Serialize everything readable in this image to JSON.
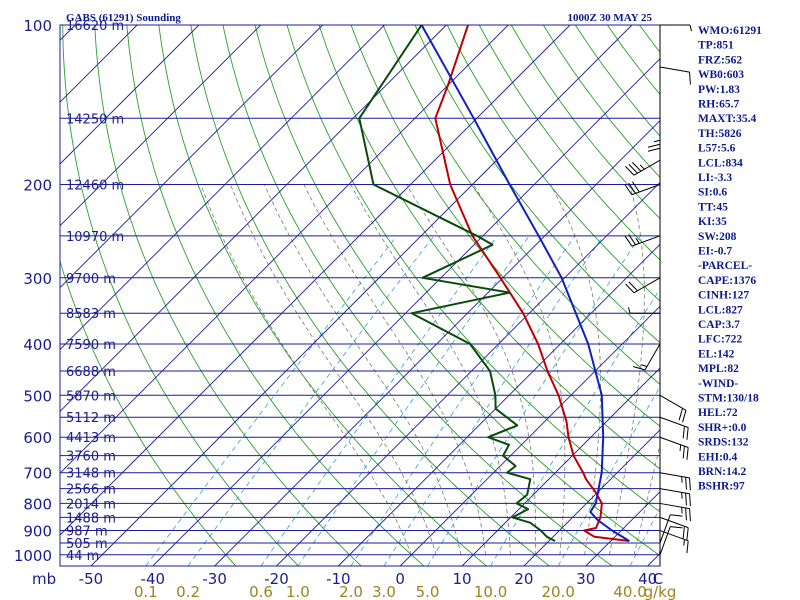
{
  "header": {
    "title": "GABS (61291) Sounding",
    "time": "1000Z 30 MAY 25"
  },
  "colors": {
    "frame": "#1c1c9c",
    "isotherm": "#1c1c9c",
    "dry_adiabat": "#2aa02a",
    "moist_adiabat": "#7a7a6a",
    "mixing_ratio": "#30a0d0",
    "temperature": "#c00000",
    "dewpoint": "#0a4a0a",
    "parcel": "#1020c0",
    "labels": "#1c1c8c",
    "side_text": "#0c1a8c",
    "mr_labels": "#a08020",
    "wind_barbs": "#000000"
  },
  "chart_data": {
    "type": "line",
    "title": "GABS (61291) Sounding",
    "subtitle": "1000Z 30 MAY 25",
    "xlabel": "C",
    "ylabel": "mb",
    "x_axis_ticks": [
      "-50",
      "-40",
      "-30",
      "-20",
      "-10",
      "0",
      "10",
      "20",
      "30",
      "40"
    ],
    "x_axis_values": [
      -50,
      -40,
      -30,
      -20,
      -10,
      0,
      10,
      20,
      30,
      40
    ],
    "x_unit": "C",
    "x_range": [
      -55,
      42
    ],
    "y_scale": "log",
    "y_range": [
      1050,
      100
    ],
    "pressure_ticks": [
      "100",
      "200",
      "300",
      "400",
      "500",
      "600",
      "700",
      "800",
      "900",
      "1000"
    ],
    "pressure_values": [
      100,
      200,
      300,
      400,
      500,
      600,
      700,
      800,
      900,
      1000
    ],
    "pressure_unit": "mb",
    "mixing_ratio_ticks": [
      "0.1",
      "0.2",
      "0.6",
      "1.0",
      "2.0",
      "3.0",
      "5.0",
      "10.0",
      "20.0",
      "40.0"
    ],
    "mixing_ratio_values": [
      0.1,
      0.2,
      0.6,
      1.0,
      2.0,
      3.0,
      5.0,
      10.0,
      20.0,
      40.0
    ],
    "mixing_ratio_unit": "g/kg",
    "height_labels": [
      {
        "p": 100,
        "label": "16620 m"
      },
      {
        "p": 150,
        "label": "14250 m"
      },
      {
        "p": 200,
        "label": "12460 m"
      },
      {
        "p": 250,
        "label": "10970 m"
      },
      {
        "p": 300,
        "label": "9700 m"
      },
      {
        "p": 350,
        "label": "8583 m"
      },
      {
        "p": 400,
        "label": "7590 m"
      },
      {
        "p": 450,
        "label": "6688 m"
      },
      {
        "p": 500,
        "label": "5870 m"
      },
      {
        "p": 550,
        "label": "5112 m"
      },
      {
        "p": 600,
        "label": "4413 m"
      },
      {
        "p": 650,
        "label": "3760 m"
      },
      {
        "p": 700,
        "label": "3148 m"
      },
      {
        "p": 750,
        "label": "2566 m"
      },
      {
        "p": 800,
        "label": "2014 m"
      },
      {
        "p": 850,
        "label": "1488 m"
      },
      {
        "p": 900,
        "label": "987 m"
      },
      {
        "p": 950,
        "label": "505 m"
      },
      {
        "p": 1000,
        "label": "44 m"
      }
    ],
    "series": [
      {
        "role": "temperature",
        "points": [
          {
            "p": 942,
            "t": 33.0
          },
          {
            "p": 925,
            "t": 26.7
          },
          {
            "p": 900,
            "t": 24.0
          },
          {
            "p": 890,
            "t": 25.5
          },
          {
            "p": 850,
            "t": 24.5
          },
          {
            "p": 800,
            "t": 22.5
          },
          {
            "p": 760,
            "t": 19.5
          },
          {
            "p": 720,
            "t": 16.0
          },
          {
            "p": 700,
            "t": 14.5
          },
          {
            "p": 650,
            "t": 10.2
          },
          {
            "p": 600,
            "t": 6.4
          },
          {
            "p": 560,
            "t": 3.5
          },
          {
            "p": 500,
            "t": -2.0
          },
          {
            "p": 450,
            "t": -7.7
          },
          {
            "p": 400,
            "t": -13.6
          },
          {
            "p": 350,
            "t": -21.0
          },
          {
            "p": 300,
            "t": -30.4
          },
          {
            "p": 250,
            "t": -41.7
          },
          {
            "p": 200,
            "t": -53.6
          },
          {
            "p": 150,
            "t": -66.7
          },
          {
            "p": 130,
            "t": -70.0
          },
          {
            "p": 100,
            "t": -76.5
          }
        ]
      },
      {
        "role": "dewpoint",
        "points": [
          {
            "p": 942,
            "t": 21.0
          },
          {
            "p": 925,
            "t": 19.0
          },
          {
            "p": 900,
            "t": 17.0
          },
          {
            "p": 870,
            "t": 14.0
          },
          {
            "p": 850,
            "t": 10.3
          },
          {
            "p": 820,
            "t": 11.5
          },
          {
            "p": 800,
            "t": 8.7
          },
          {
            "p": 770,
            "t": 9.0
          },
          {
            "p": 720,
            "t": 7.0
          },
          {
            "p": 700,
            "t": 2.2
          },
          {
            "p": 680,
            "t": 2.5
          },
          {
            "p": 650,
            "t": -1.2
          },
          {
            "p": 620,
            "t": -2.0
          },
          {
            "p": 600,
            "t": -6.6
          },
          {
            "p": 570,
            "t": -3.8
          },
          {
            "p": 530,
            "t": -10.0
          },
          {
            "p": 500,
            "t": -12.2
          },
          {
            "p": 450,
            "t": -17.0
          },
          {
            "p": 400,
            "t": -24.6
          },
          {
            "p": 350,
            "t": -39.0
          },
          {
            "p": 320,
            "t": -26.5
          },
          {
            "p": 300,
            "t": -43.0
          },
          {
            "p": 260,
            "t": -37.0
          },
          {
            "p": 250,
            "t": -41.0
          },
          {
            "p": 200,
            "t": -66.0
          },
          {
            "p": 150,
            "t": -79.0
          },
          {
            "p": 100,
            "t": -84.0
          }
        ]
      },
      {
        "role": "parcel",
        "points": [
          {
            "p": 942,
            "t": 33.0
          },
          {
            "p": 900,
            "t": 28.5
          },
          {
            "p": 860,
            "t": 24.5
          },
          {
            "p": 830,
            "t": 22.0
          },
          {
            "p": 800,
            "t": 21.5
          },
          {
            "p": 700,
            "t": 17.5
          },
          {
            "p": 600,
            "t": 12.0
          },
          {
            "p": 500,
            "t": 5.0
          },
          {
            "p": 400,
            "t": -5.5
          },
          {
            "p": 300,
            "t": -20.5
          },
          {
            "p": 250,
            "t": -31.0
          },
          {
            "p": 200,
            "t": -44.0
          },
          {
            "p": 150,
            "t": -60.5
          },
          {
            "p": 100,
            "t": -84.0
          }
        ]
      }
    ],
    "wind_barbs": [
      {
        "p": 100,
        "dir": 90,
        "spd": 5
      },
      {
        "p": 120,
        "dir": 100,
        "spd": 10
      },
      {
        "p": 150,
        "dir": 180,
        "spd": 25
      },
      {
        "p": 180,
        "dir": 240,
        "spd": 35
      },
      {
        "p": 200,
        "dir": 250,
        "spd": 30
      },
      {
        "p": 250,
        "dir": 250,
        "spd": 25
      },
      {
        "p": 300,
        "dir": 240,
        "spd": 20
      },
      {
        "p": 350,
        "dir": 270,
        "spd": 5
      },
      {
        "p": 400,
        "dir": 210,
        "spd": 15
      },
      {
        "p": 500,
        "dir": 120,
        "spd": 20
      },
      {
        "p": 550,
        "dir": 110,
        "spd": 20
      },
      {
        "p": 600,
        "dir": 110,
        "spd": 25
      },
      {
        "p": 700,
        "dir": 100,
        "spd": 25
      },
      {
        "p": 750,
        "dir": 100,
        "spd": 25
      },
      {
        "p": 800,
        "dir": 100,
        "spd": 25
      },
      {
        "p": 850,
        "dir": 110,
        "spd": 20
      },
      {
        "p": 900,
        "dir": 110,
        "spd": 15
      },
      {
        "p": 950,
        "dir": 20,
        "spd": 10
      },
      {
        "p": 1000,
        "dir": 20,
        "spd": 10
      }
    ]
  },
  "indices": {
    "lines": [
      "WMO:61291",
      "TP:851",
      "FRZ:562",
      "WB0:603",
      "PW:1.83",
      "RH:65.7",
      "MAXT:35.4",
      "TH:5826",
      "L57:5.6",
      "LCL:834",
      "LI:-3.3",
      "SI:0.6",
      "TT:45",
      "KI:35",
      "SW:208",
      "EI:-0.7",
      "-PARCEL-",
      "CAPE:1376",
      "CINH:127",
      "LCL:827",
      "CAP:3.7",
      "LFC:722",
      "EL:142",
      "MPL:82",
      "-WIND-",
      "STM:130/18",
      "HEL:72",
      "SHR+:0.0",
      "SRDS:132",
      "EHI:0.4",
      "BRN:14.2",
      "BSHR:97"
    ]
  }
}
